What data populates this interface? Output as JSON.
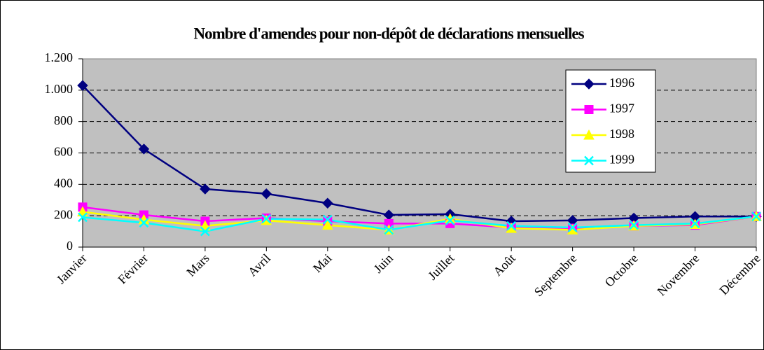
{
  "chart_data": {
    "type": "line",
    "title": "Nombre d'amendes pour non-dépôt de déclarations mensuelles",
    "categories": [
      "Janvier",
      "Février",
      "Mars",
      "Avril",
      "Mai",
      "Juin",
      "Juillet",
      "Août",
      "Septembre",
      "Octobre",
      "Novembre",
      "Décembre"
    ],
    "series": [
      {
        "name": "1996",
        "color": "#000080",
        "marker": "diamond",
        "values": [
          1030,
          625,
          370,
          340,
          280,
          205,
          210,
          165,
          170,
          185,
          195,
          195
        ]
      },
      {
        "name": "1997",
        "color": "#ff00ff",
        "marker": "square",
        "values": [
          255,
          205,
          165,
          185,
          165,
          150,
          150,
          125,
          120,
          135,
          140,
          195
        ]
      },
      {
        "name": "1998",
        "color": "#ffff00",
        "marker": "triangle",
        "values": [
          225,
          175,
          135,
          170,
          140,
          110,
          180,
          120,
          110,
          135,
          145,
          195
        ]
      },
      {
        "name": "1999",
        "color": "#00ffff",
        "marker": "x",
        "values": [
          190,
          155,
          100,
          180,
          175,
          110,
          170,
          135,
          125,
          140,
          150,
          195
        ]
      }
    ],
    "ylim": [
      0,
      1200
    ],
    "yticks": [
      0,
      200,
      400,
      600,
      800,
      {
        "value": 1000,
        "label": "1.000"
      },
      {
        "value": 1200,
        "label": "1.200"
      }
    ],
    "grid": true,
    "legend": "upper right",
    "plot_background": "#c0c0c0"
  }
}
